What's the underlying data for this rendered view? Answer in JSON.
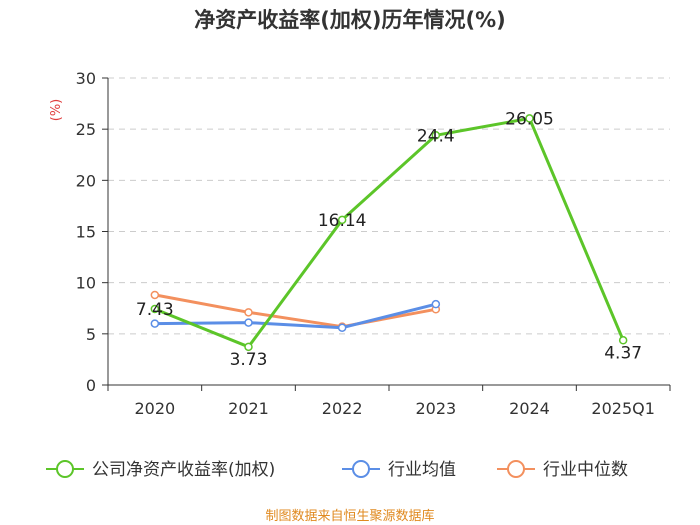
{
  "chart_data": {
    "type": "line",
    "title": "净资产收益率(加权)历年情况(%)",
    "ylabel": "(%)",
    "ylim": [
      0,
      30
    ],
    "yticks": [
      0,
      5,
      10,
      15,
      20,
      25,
      30
    ],
    "categories": [
      "2020",
      "2021",
      "2022",
      "2023",
      "2024",
      "2025Q1"
    ],
    "grid": true,
    "legend_position": "bottom",
    "series": [
      {
        "name": "公司净资产收益率(加权)",
        "color": "#5cc529",
        "values": [
          7.43,
          3.73,
          16.14,
          24.4,
          26.05,
          4.37
        ],
        "labels": [
          "7.43",
          "3.73",
          "16.14",
          "24.4",
          "26.05",
          "4.37"
        ]
      },
      {
        "name": "行业均值",
        "color": "#5b8ee6",
        "values": [
          6.0,
          6.1,
          5.6,
          7.9,
          null,
          null
        ]
      },
      {
        "name": "行业中位数",
        "color": "#f3905e",
        "values": [
          8.8,
          7.1,
          5.7,
          7.4,
          null,
          null
        ]
      }
    ],
    "source": "制图数据来自恒生聚源数据库"
  }
}
